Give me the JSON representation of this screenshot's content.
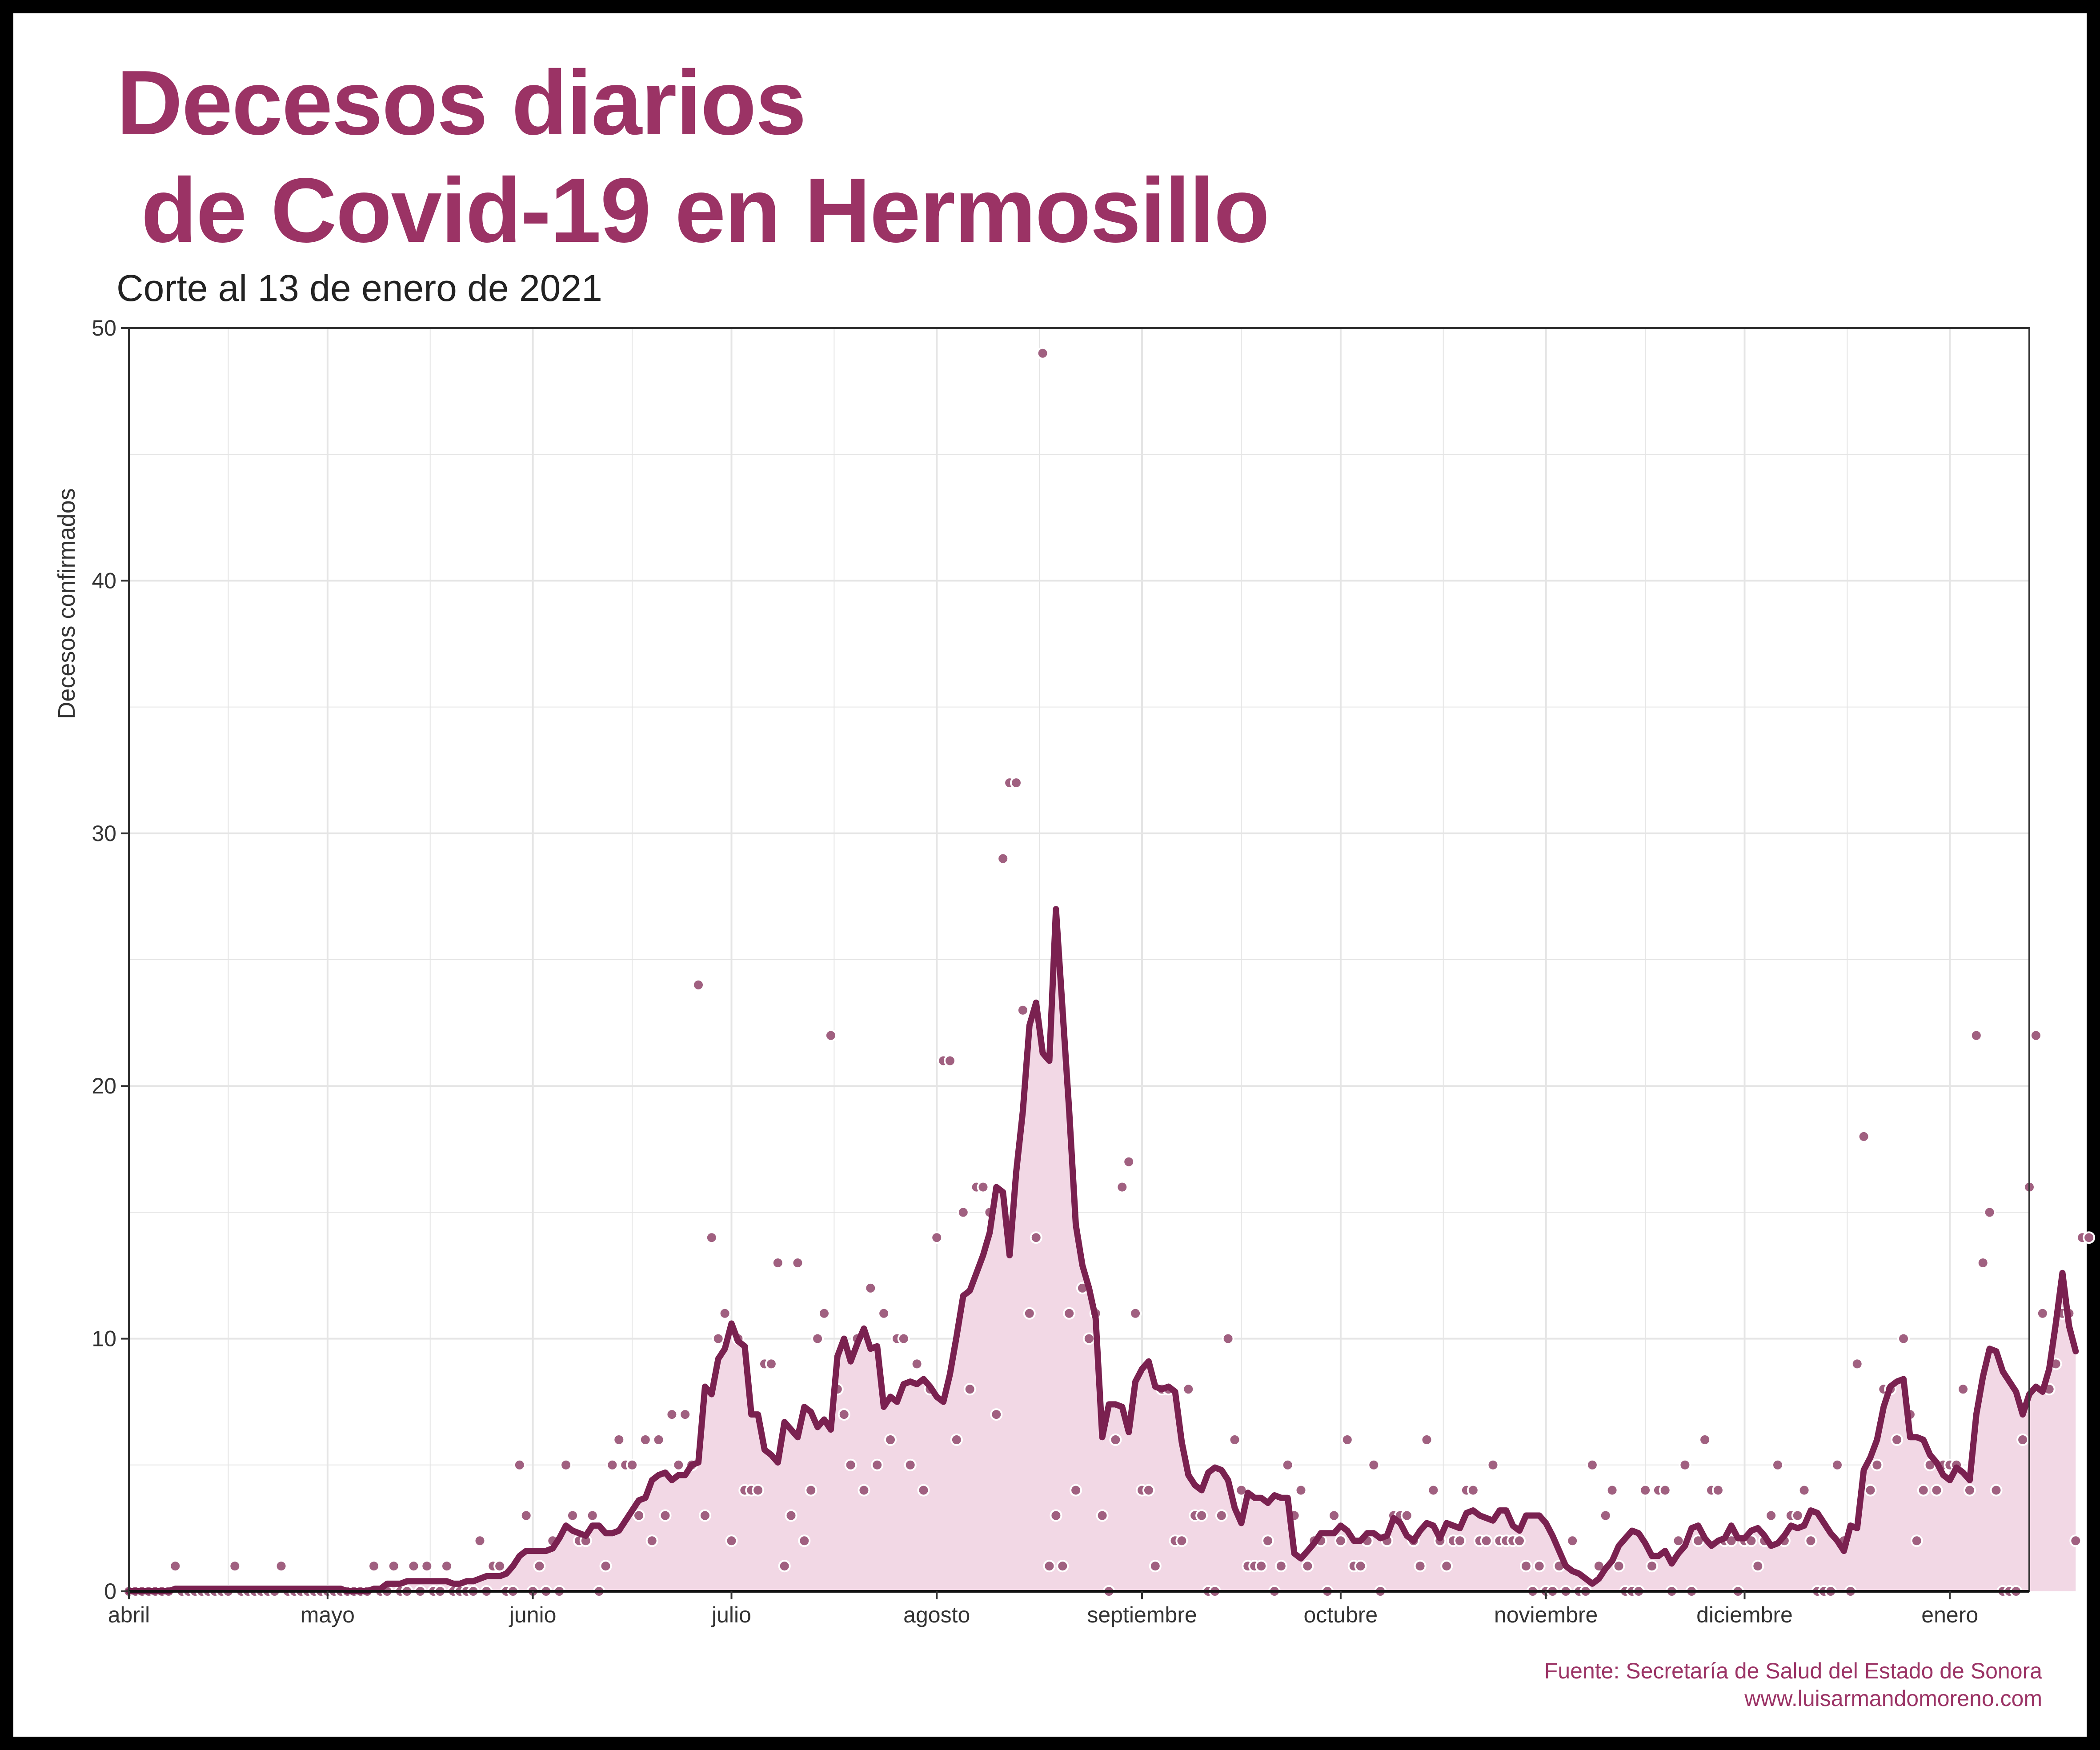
{
  "title_line1": "Decesos diarios",
  "title_line2": " de Covid-19 en Hermosillo",
  "subtitle": "Corte al 13 de enero de 2021",
  "source_line1": "Fuente: Secretaría de Salud del Estado de Sonora",
  "source_line2": "www.luisarmandomoreno.com",
  "colors": {
    "title": "#9b3365",
    "line": "#7a2150",
    "area": "#f2d8e5",
    "point_fill": "#a06080",
    "point_stroke": "#ffffff",
    "grid": "#e5e5e5"
  },
  "chart_data": {
    "type": "line",
    "ylabel": "Decesos confirmados",
    "xlabel": "",
    "ylim": [
      0,
      50
    ],
    "yticks": [
      0,
      10,
      20,
      30,
      40,
      50
    ],
    "x_start_date": "2020-04-01",
    "xlim_dates": [
      "2020-04-01",
      "2021-01-13"
    ],
    "xtick_labels": [
      {
        "label": "abril",
        "date": "2020-04-01"
      },
      {
        "label": "mayo",
        "date": "2020-05-01"
      },
      {
        "label": "junio",
        "date": "2020-06-01"
      },
      {
        "label": "julio",
        "date": "2020-07-01"
      },
      {
        "label": "agosto",
        "date": "2020-08-01"
      },
      {
        "label": "septiembre",
        "date": "2020-09-01"
      },
      {
        "label": "octubre",
        "date": "2020-10-01"
      },
      {
        "label": "noviembre",
        "date": "2020-11-01"
      },
      {
        "label": "diciembre",
        "date": "2020-12-01"
      },
      {
        "label": "enero",
        "date": "2021-01-01"
      }
    ],
    "grid": true,
    "series": [
      {
        "name": "",
        "kind": "points",
        "values": [
          0,
          0,
          0,
          0,
          0,
          0,
          0,
          1,
          0,
          0,
          0,
          0,
          0,
          0,
          0,
          0,
          1,
          0,
          0,
          0,
          0,
          0,
          0,
          1,
          0,
          0,
          0,
          0,
          0,
          0,
          0,
          0,
          0,
          0,
          0,
          0,
          0,
          1,
          0,
          0,
          1,
          0,
          0,
          1,
          0,
          1,
          0,
          0,
          1,
          0,
          0,
          0,
          0,
          2,
          0,
          1,
          1,
          0,
          0,
          5,
          3,
          0,
          1,
          0,
          2,
          0,
          5,
          3,
          2,
          2,
          3,
          0,
          1,
          5,
          6,
          5,
          5,
          3,
          6,
          2,
          6,
          3,
          7,
          5,
          7,
          5,
          24,
          3,
          14,
          10,
          11,
          2,
          10,
          4,
          4,
          4,
          9,
          9,
          13,
          1,
          3,
          13,
          2,
          4,
          10,
          11,
          22,
          8,
          7,
          5,
          10,
          4,
          12,
          5,
          11,
          6,
          10,
          10,
          5,
          9,
          4,
          8,
          14,
          21,
          21,
          6,
          15,
          8,
          16,
          16,
          15,
          7,
          29,
          32,
          32,
          23,
          11,
          14,
          49,
          1,
          3,
          1,
          11,
          4,
          12,
          10,
          11,
          3,
          0,
          6,
          16,
          17,
          11,
          4,
          4,
          1,
          8,
          8,
          2,
          2,
          8,
          3,
          3,
          0,
          0,
          3,
          10,
          6,
          4,
          1,
          1,
          1,
          2,
          0,
          1,
          5,
          3,
          4,
          1,
          2,
          2,
          0,
          3,
          2,
          6,
          1,
          1,
          2,
          5,
          0,
          2,
          3,
          3,
          3,
          2,
          1,
          6,
          4,
          2,
          1,
          2,
          2,
          4,
          4,
          2,
          2,
          5,
          2,
          2,
          2,
          2,
          1,
          0,
          1,
          0,
          0,
          1,
          0,
          2,
          0,
          0,
          5,
          1,
          3,
          4,
          1,
          0,
          0,
          0,
          4,
          1,
          4,
          4,
          0,
          2,
          5,
          0,
          2,
          6,
          4,
          4,
          2,
          2,
          0,
          2,
          2,
          1,
          2,
          3,
          5,
          2,
          3,
          3,
          4,
          2,
          0,
          0,
          0,
          5,
          2,
          0,
          9,
          18,
          4,
          5,
          8,
          8,
          6,
          10,
          7,
          2,
          4,
          5,
          4,
          5,
          5,
          5,
          8,
          4,
          22,
          13,
          15,
          4,
          0,
          0,
          0,
          6,
          16,
          22,
          11,
          8,
          9,
          11,
          11,
          2,
          14,
          14
        ]
      },
      {
        "name": "",
        "kind": "line",
        "values": [
          0,
          0,
          0,
          0,
          0,
          0,
          0,
          0.1,
          0.1,
          0.1,
          0.1,
          0.1,
          0.1,
          0.1,
          0.1,
          0.1,
          0.1,
          0.1,
          0.1,
          0.1,
          0.1,
          0.1,
          0.1,
          0.1,
          0.1,
          0.1,
          0.1,
          0.1,
          0.1,
          0.1,
          0.1,
          0.1,
          0.1,
          0,
          0,
          0,
          0,
          0.1,
          0.1,
          0.3,
          0.3,
          0.3,
          0.4,
          0.4,
          0.4,
          0.4,
          0.4,
          0.4,
          0.4,
          0.3,
          0.3,
          0.4,
          0.4,
          0.5,
          0.6,
          0.6,
          0.6,
          0.7,
          1.0,
          1.4,
          1.6,
          1.6,
          1.6,
          1.6,
          1.7,
          2.1,
          2.6,
          2.4,
          2.3,
          2.2,
          2.6,
          2.6,
          2.3,
          2.3,
          2.4,
          2.8,
          3.2,
          3.6,
          3.7,
          4.4,
          4.6,
          4.7,
          4.4,
          4.6,
          4.6,
          5.0,
          5.1,
          8.1,
          7.8,
          9.2,
          9.6,
          10.6,
          9.9,
          9.7,
          7.0,
          7.0,
          5.6,
          5.4,
          5.1,
          6.7,
          6.4,
          6.1,
          7.3,
          7.1,
          6.5,
          6.8,
          6.4,
          9.3,
          10.0,
          9.1,
          9.8,
          10.4,
          9.6,
          9.7,
          7.3,
          7.7,
          7.5,
          8.2,
          8.3,
          8.2,
          8.4,
          8.1,
          7.7,
          7.5,
          8.6,
          10.1,
          11.7,
          11.9,
          12.6,
          13.3,
          14.2,
          16.0,
          15.8,
          13.3,
          16.6,
          19.0,
          22.4,
          23.3,
          21.3,
          21.0,
          27.0,
          23.0,
          19.0,
          14.5,
          12.9,
          12.0,
          10.8,
          6.1,
          7.4,
          7.4,
          7.3,
          6.3,
          8.3,
          8.8,
          9.1,
          8.1,
          8.0,
          8.1,
          7.9,
          5.9,
          4.6,
          4.2,
          4.0,
          4.7,
          4.9,
          4.8,
          4.4,
          3.3,
          2.7,
          3.9,
          3.7,
          3.7,
          3.5,
          3.8,
          3.7,
          3.7,
          1.5,
          1.3,
          1.6,
          1.9,
          2.3,
          2.3,
          2.3,
          2.6,
          2.4,
          2.0,
          2.0,
          2.3,
          2.3,
          2.1,
          2.2,
          2.9,
          2.7,
          2.2,
          2.0,
          2.4,
          2.7,
          2.6,
          2.1,
          2.7,
          2.6,
          2.5,
          3.1,
          3.2,
          3.0,
          2.9,
          2.8,
          3.2,
          3.2,
          2.6,
          2.4,
          3.0,
          3.0,
          3.0,
          2.7,
          2.2,
          1.6,
          1.0,
          0.8,
          0.7,
          0.5,
          0.3,
          0.5,
          0.9,
          1.2,
          1.8,
          2.1,
          2.4,
          2.3,
          1.9,
          1.4,
          1.4,
          1.6,
          1.1,
          1.5,
          1.8,
          2.5,
          2.6,
          2.1,
          1.8,
          2.0,
          2.1,
          2.6,
          2.1,
          2.1,
          2.4,
          2.5,
          2.2,
          1.8,
          1.9,
          2.2,
          2.6,
          2.5,
          2.6,
          3.2,
          3.1,
          2.7,
          2.3,
          2.0,
          1.6,
          2.6,
          2.5,
          4.8,
          5.3,
          6.0,
          7.3,
          8.1,
          8.3,
          8.4,
          6.1,
          6.1,
          6.0,
          5.4,
          5.1,
          4.6,
          4.4,
          4.9,
          4.7,
          4.4,
          7.0,
          8.5,
          9.6,
          9.5,
          8.7,
          8.3,
          7.9,
          7.0,
          7.8,
          8.1,
          7.9,
          8.8,
          10.6,
          12.6,
          10.5,
          9.5
        ]
      }
    ]
  }
}
